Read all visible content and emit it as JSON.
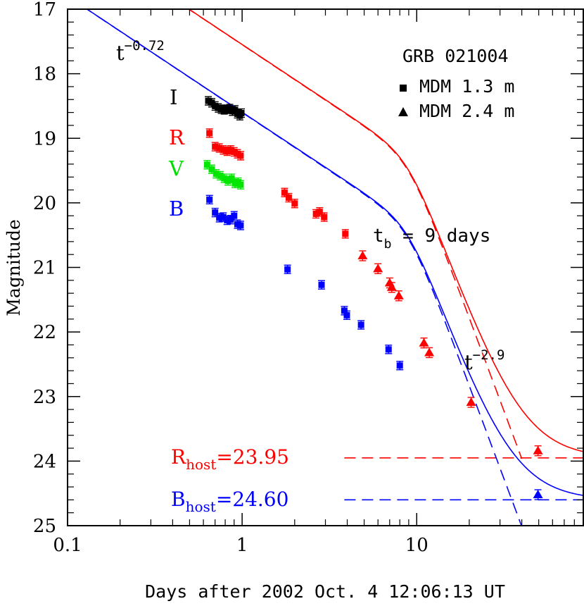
{
  "chart_data": {
    "type": "scatter",
    "title": "GRB 021004",
    "xlabel": "Days after 2002 Oct. 4 12:06:13 UT",
    "ylabel": "Magnitude",
    "x_scale": "log",
    "xlim": [
      0.1,
      90
    ],
    "ylim": [
      25,
      17
    ],
    "x_tick_labels": [
      "0.1",
      "1",
      "10"
    ],
    "y_tick_labels": [
      "17",
      "18",
      "19",
      "20",
      "21",
      "22",
      "23",
      "24",
      "25"
    ],
    "legend": {
      "placement": "top-right",
      "entries": [
        {
          "marker": "square",
          "label": "MDM 1.3 m"
        },
        {
          "marker": "triangle",
          "label": "MDM 2.4 m"
        }
      ]
    },
    "annotations": {
      "early_slope": {
        "base": "t",
        "exp": "−0.72"
      },
      "late_slope": {
        "base": "t",
        "exp": "−2.9"
      },
      "break_time": {
        "base": "t",
        "sub": "b",
        "rest": " = 9 days"
      },
      "r_host": {
        "base": "R",
        "sub": "host",
        "rest": "=23.95"
      },
      "b_host": {
        "base": "B",
        "sub": "host",
        "rest": "=24.60"
      }
    },
    "colors": {
      "I": "#000000",
      "R": "#ff0000",
      "V": "#00ee00",
      "B": "#0000ff"
    },
    "model": {
      "R": {
        "m0": 17.55,
        "alpha1": 0.72,
        "alpha2": 2.9,
        "tb": 9,
        "smooth": 3,
        "host": 23.95
      },
      "B": {
        "m0": 18.6,
        "alpha1": 0.72,
        "alpha2": 2.9,
        "tb": 9,
        "smooth": 3,
        "host": 24.6
      }
    },
    "series": [
      {
        "name": "I",
        "marker": "square",
        "x": [
          0.64,
          0.67,
          0.7,
          0.73,
          0.76,
          0.79,
          0.82,
          0.85,
          0.88,
          0.91,
          0.94,
          0.97,
          0.99
        ],
        "y": [
          18.42,
          18.45,
          18.5,
          18.53,
          18.55,
          18.56,
          18.55,
          18.54,
          18.58,
          18.56,
          18.62,
          18.65,
          18.61
        ]
      },
      {
        "name": "R",
        "marker": "square",
        "x": [
          0.65,
          0.7,
          0.74,
          0.78,
          0.82,
          0.86,
          0.9,
          0.94,
          0.98,
          1.75,
          1.85,
          2.0,
          2.65,
          2.78,
          2.95,
          3.9
        ],
        "y": [
          18.92,
          19.13,
          19.15,
          19.18,
          19.2,
          19.18,
          19.21,
          19.24,
          19.27,
          19.84,
          19.92,
          20.01,
          20.17,
          20.14,
          20.22,
          20.48
        ]
      },
      {
        "name": "R",
        "marker": "triangle",
        "x": [
          4.9,
          6.0,
          7.0,
          7.2,
          7.9,
          11.0,
          11.8,
          20.5,
          49.5
        ],
        "y": [
          20.82,
          21.02,
          21.24,
          21.31,
          21.44,
          22.17,
          22.32,
          23.09,
          23.84
        ]
      },
      {
        "name": "V",
        "marker": "square",
        "x": [
          0.63,
          0.67,
          0.71,
          0.75,
          0.79,
          0.83,
          0.87,
          0.91,
          0.95,
          0.98
        ],
        "y": [
          19.41,
          19.48,
          19.55,
          19.58,
          19.62,
          19.66,
          19.62,
          19.7,
          19.68,
          19.72
        ]
      },
      {
        "name": "B",
        "marker": "square",
        "x": [
          0.65,
          0.7,
          0.74,
          0.78,
          0.82,
          0.86,
          0.9,
          0.94,
          0.98,
          1.82,
          2.85,
          3.85,
          3.98,
          4.8,
          6.9,
          8.0
        ],
        "y": [
          19.95,
          20.15,
          20.23,
          20.22,
          20.27,
          20.26,
          20.2,
          20.33,
          20.35,
          21.03,
          21.27,
          21.67,
          21.74,
          21.89,
          22.27,
          22.52
        ]
      },
      {
        "name": "B",
        "marker": "triangle",
        "x": [
          49.5
        ],
        "y": [
          24.52
        ]
      }
    ]
  }
}
